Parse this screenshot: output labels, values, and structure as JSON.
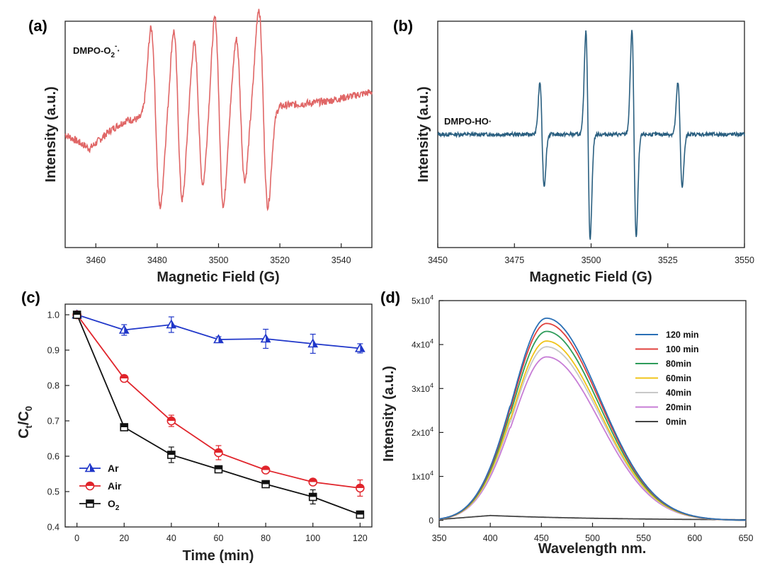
{
  "panels": [
    {
      "tag": "(a)"
    },
    {
      "tag": "(b)"
    },
    {
      "tag": "(c)"
    },
    {
      "tag": "(d)"
    }
  ],
  "chart_data": [
    {
      "id": "a",
      "type": "line",
      "title": "",
      "xlabel": "Magnetic Field (G)",
      "ylabel": "Intensity (a.u.)",
      "xlim": [
        3450,
        3550
      ],
      "ylim": [
        -1.2,
        1.2
      ],
      "xticks": [
        3460,
        3480,
        3500,
        3520,
        3540
      ],
      "yticks_shown": false,
      "annotation": {
        "species": "DMPO-O",
        "sub": "2",
        "sup": "-",
        "dot": "·"
      },
      "series": [
        {
          "name": "DMPO-O2-·",
          "color": "#e06666",
          "noise_amplitude": 0.04,
          "baseline_points": [
            [
              3450,
              0.0
            ],
            [
              3458,
              -0.15
            ],
            [
              3465,
              0.05
            ],
            [
              3470,
              0.15
            ],
            [
              3520,
              0.3
            ],
            [
              3535,
              0.35
            ],
            [
              3550,
              0.45
            ]
          ],
          "peaks": [
            {
              "center": 3378.5,
              "amplitude": 0.0,
              "width": 1
            },
            {
              "center": 3479.5,
              "amplitude": 0.95,
              "width": 1.5
            },
            {
              "center": 3486.8,
              "amplitude": 0.9,
              "width": 1.4
            },
            {
              "center": 3493.5,
              "amplitude": 0.75,
              "width": 1.4
            },
            {
              "center": 3500.2,
              "amplitude": 1.0,
              "width": 1.4
            },
            {
              "center": 3507.2,
              "amplitude": 0.75,
              "width": 1.4
            },
            {
              "center": 3514.6,
              "amplitude": 1.05,
              "width": 1.5
            }
          ]
        }
      ]
    },
    {
      "id": "b",
      "type": "line",
      "title": "",
      "xlabel": "Magnetic Field (G)",
      "ylabel": "Intensity (a.u.)",
      "xlim": [
        3450,
        3550
      ],
      "ylim": [
        -1.2,
        1.2
      ],
      "xticks": [
        3450,
        3475,
        3500,
        3525,
        3550
      ],
      "yticks_shown": false,
      "annotation": {
        "species": "DMPO-HO·"
      },
      "series": [
        {
          "name": "DMPO-HO·",
          "color": "#2a5f80",
          "noise_amplitude": 0.02,
          "baseline_points": [
            [
              3450,
              0.0
            ],
            [
              3550,
              0.0
            ]
          ],
          "peaks": [
            {
              "center": 3484.0,
              "amplitude": 0.55,
              "width": 0.7
            },
            {
              "center": 3499.0,
              "amplitude": 1.1,
              "width": 0.7
            },
            {
              "center": 3514.0,
              "amplitude": 1.1,
              "width": 0.7
            },
            {
              "center": 3529.0,
              "amplitude": 0.55,
              "width": 0.7
            }
          ]
        }
      ]
    },
    {
      "id": "c",
      "type": "line",
      "title": "",
      "xlabel": "Time (min)",
      "ylabel": {
        "main": "C",
        "sub1": "t",
        "mid": "/C",
        "sub2": "0"
      },
      "xlim": [
        -5,
        125
      ],
      "ylim": [
        0.4,
        1.03
      ],
      "xticks": [
        0,
        20,
        40,
        60,
        80,
        100,
        120
      ],
      "yticks": [
        0.4,
        0.5,
        0.6,
        0.7,
        0.8,
        0.9,
        1.0
      ],
      "ytick_labels": [
        "0.4",
        "0.5",
        "0.6",
        "0.7",
        "0.8",
        "0.9",
        "1.0"
      ],
      "x": [
        0,
        20,
        40,
        60,
        80,
        100,
        120
      ],
      "series": [
        {
          "name": "Ar",
          "label_main": "Ar",
          "label_sub": "",
          "color": "#1f36c9",
          "marker": "triangle",
          "values": [
            1.0,
            0.957,
            0.972,
            0.93,
            0.932,
            0.918,
            0.905
          ],
          "errors": [
            0.005,
            0.015,
            0.022,
            0.008,
            0.027,
            0.027,
            0.013
          ]
        },
        {
          "name": "Air",
          "label_main": "Air",
          "label_sub": "",
          "color": "#e0242b",
          "marker": "circle",
          "values": [
            1.0,
            0.82,
            0.7,
            0.61,
            0.561,
            0.527,
            0.51
          ],
          "errors": [
            0.005,
            0.006,
            0.016,
            0.02,
            0.006,
            0.006,
            0.023
          ]
        },
        {
          "name": "O2",
          "label_main": "O",
          "label_sub": "2",
          "color": "#111111",
          "marker": "square",
          "values": [
            1.0,
            0.682,
            0.604,
            0.563,
            0.521,
            0.485,
            0.435
          ],
          "errors": [
            0.005,
            0.007,
            0.022,
            0.008,
            0.008,
            0.02,
            0.01
          ]
        }
      ],
      "legend": "bottom-left"
    },
    {
      "id": "d",
      "type": "line",
      "title": "",
      "xlabel": "Wavelength nm.",
      "ylabel": "Intensity (a.u.)",
      "xlim": [
        350,
        650
      ],
      "ylim": [
        -1500,
        50000
      ],
      "xticks": [
        350,
        400,
        450,
        500,
        550,
        600,
        650
      ],
      "yticks": [
        0,
        10000,
        20000,
        30000,
        40000,
        50000
      ],
      "ytick_labels": [
        {
          "main": "0",
          "sup": ""
        },
        {
          "main": "1x10",
          "sup": "4"
        },
        {
          "main": "2x10",
          "sup": "4"
        },
        {
          "main": "3x10",
          "sup": "4"
        },
        {
          "main": "4x10",
          "sup": "4"
        },
        {
          "main": "5x10",
          "sup": "4"
        }
      ],
      "peak_wavelength": 455,
      "series": [
        {
          "name": "120 min",
          "color": "#2a6fb5",
          "peak": 46000
        },
        {
          "name": "100 min",
          "color": "#e0413c",
          "peak": 44800
        },
        {
          "name": "80min",
          "color": "#2e9c5a",
          "peak": 43000
        },
        {
          "name": "60min",
          "color": "#f0c419",
          "peak": 40800
        },
        {
          "name": "40min",
          "color": "#c8c8c8",
          "peak": 39500
        },
        {
          "name": "20min",
          "color": "#c77dd6",
          "peak": 37200
        },
        {
          "name": "0min",
          "color": "#444444",
          "peak": 0
        }
      ],
      "legend": "top-right"
    }
  ]
}
